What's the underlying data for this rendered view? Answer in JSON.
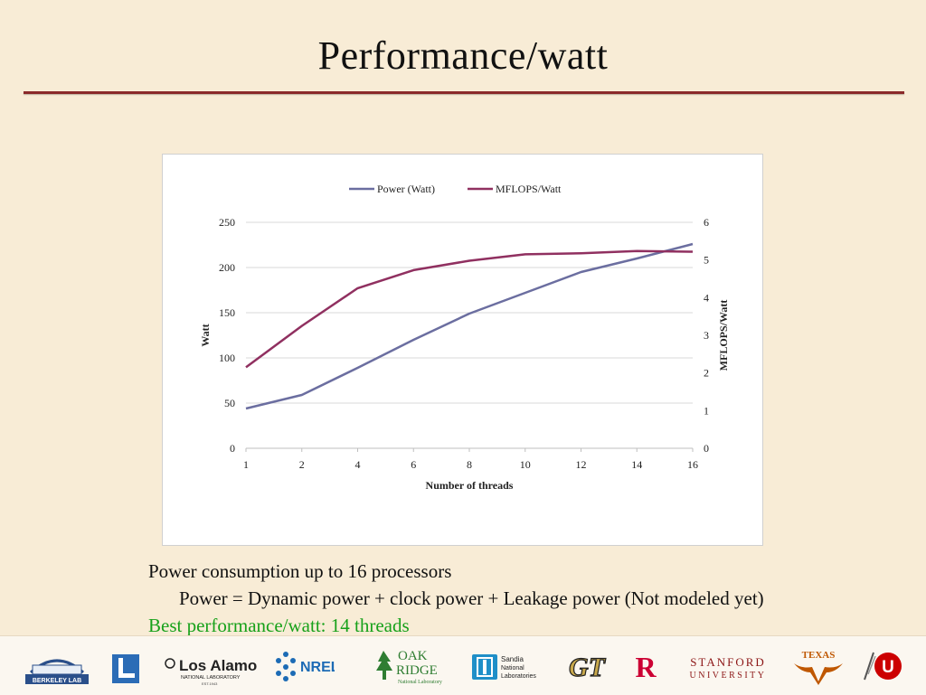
{
  "slide": {
    "title": "Performance/watt",
    "bullets": [
      "Power consumption up to 16 processors",
      "Power = Dynamic power + clock power + Leakage power (Not modeled yet)",
      "Best performance/watt: 14 threads"
    ]
  },
  "chart_data": {
    "type": "line",
    "title": "",
    "categories": [
      "1",
      "2",
      "4",
      "6",
      "8",
      "10",
      "12",
      "14",
      "16"
    ],
    "xlabel": "Number of threads",
    "ylabel": "Watt",
    "y2label": "MFLOPS/Watt",
    "ylim": [
      0,
      250
    ],
    "y2lim": [
      0,
      6
    ],
    "yticks": [
      "0",
      "50",
      "100",
      "150",
      "200",
      "250"
    ],
    "y2ticks": [
      "0",
      "1",
      "2",
      "3",
      "4",
      "5",
      "6"
    ],
    "grid": true,
    "legend_position": "top",
    "series": [
      {
        "name": "Power (Watt)",
        "axis": "left",
        "color": "#6b6ea0",
        "values": [
          44,
          59,
          89,
          120,
          149,
          172,
          195,
          210,
          226
        ]
      },
      {
        "name": "MFLOPS/Watt",
        "axis": "right",
        "color": "#903060",
        "values": [
          2.15,
          3.25,
          4.25,
          4.73,
          4.98,
          5.15,
          5.18,
          5.24,
          5.22
        ]
      }
    ]
  },
  "footer": {
    "logos": [
      {
        "name": "Berkeley Lab",
        "text": "BERKELEY LAB"
      },
      {
        "name": "Los Alamos",
        "text": "Los Alamos",
        "sub": "NATIONAL LABORATORY",
        "est": "EST.1943"
      },
      {
        "name": "NREL",
        "text": "NREL"
      },
      {
        "name": "Oak Ridge",
        "text": "OAK",
        "text2": "RIDGE",
        "sub": "National Laboratory"
      },
      {
        "name": "Sandia",
        "text": "Sandia",
        "text2": "National",
        "text3": "Laboratories"
      },
      {
        "name": "Georgia Tech",
        "text": "GT"
      },
      {
        "name": "Rutgers",
        "text": "R"
      },
      {
        "name": "Stanford",
        "text": "STANFORD",
        "sub": "UNIVERSITY"
      },
      {
        "name": "Texas",
        "text": "TEXAS"
      },
      {
        "name": "Utah",
        "text": "U"
      }
    ],
    "colors": {
      "rule": "#8b2a2a",
      "green_text": "#17a11a",
      "rutgers_red": "#cc0033",
      "stanford_red": "#8c1515",
      "texas_orange": "#bf5700"
    }
  }
}
